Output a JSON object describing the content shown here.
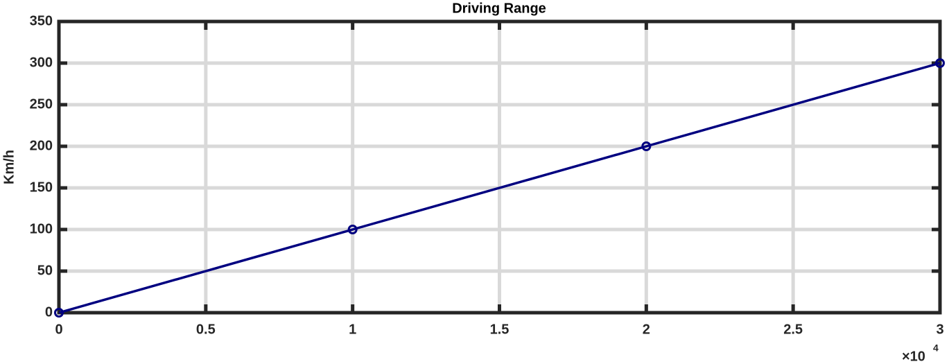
{
  "chart_data": {
    "type": "line",
    "title": "Driving Range",
    "ylabel": "Km/h",
    "x": [
      0,
      10000,
      20000,
      30000
    ],
    "values": [
      0,
      100,
      200,
      300
    ],
    "color": "#000080",
    "marker": "circle",
    "xlim": [
      0,
      30000
    ],
    "xticks": [
      0,
      {
        "value": 5000,
        "label": "0.5"
      },
      {
        "value": 10000,
        "label": "1"
      },
      {
        "value": 15000,
        "label": "1.5"
      },
      {
        "value": 20000,
        "label": "2"
      },
      {
        "value": 25000,
        "label": "2.5"
      },
      {
        "value": 30000,
        "label": "3"
      }
    ],
    "x_scale_label": {
      "base": "×10",
      "exponent": "4"
    },
    "ylim": [
      0,
      350
    ],
    "yticks": [
      0,
      50,
      100,
      150,
      200,
      250,
      300,
      350
    ],
    "grid": true
  }
}
